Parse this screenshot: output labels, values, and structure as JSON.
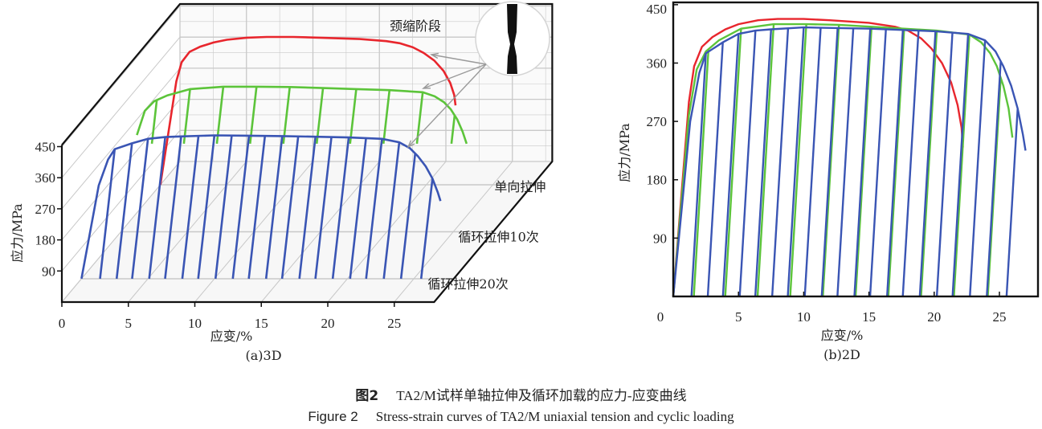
{
  "chart_data": [
    {
      "type": "line",
      "title": "(a)3D",
      "xlabel": "应变/%",
      "ylabel": "应力/MPa",
      "xlim": [
        0,
        28
      ],
      "ylim": [
        0,
        450
      ],
      "xticks": [
        "0",
        "5",
        "10",
        "15",
        "20",
        "25"
      ],
      "yticks": [
        "90",
        "180",
        "270",
        "360",
        "450"
      ],
      "grid": true,
      "annotation": "颈缩阶段",
      "series": [
        {
          "name": "单向拉伸",
          "color": "#e8262d",
          "envelope": [
            [
              0,
              0
            ],
            [
              1.2,
              300
            ],
            [
              1.6,
              355
            ],
            [
              2.2,
              385
            ],
            [
              3,
              400
            ],
            [
              4,
              412
            ],
            [
              5,
              420
            ],
            [
              6.5,
              426
            ],
            [
              8,
              428
            ],
            [
              10,
              428
            ],
            [
              12,
              426
            ],
            [
              15,
              422
            ],
            [
              17,
              416
            ],
            [
              18,
              410
            ],
            [
              19,
              398
            ],
            [
              19.8,
              382
            ],
            [
              20.6,
              360
            ],
            [
              21.3,
              330
            ],
            [
              21.8,
              295
            ],
            [
              22.1,
              260
            ],
            [
              22.2,
              230
            ]
          ],
          "cycles": []
        },
        {
          "name": "循环拉伸10次",
          "color": "#5cc43a",
          "envelope": [
            [
              0,
              0
            ],
            [
              1.2,
              280
            ],
            [
              1.8,
              350
            ],
            [
              2.5,
              378
            ],
            [
              3.5,
              395
            ],
            [
              5.2,
              413
            ],
            [
              7.7,
              420
            ],
            [
              10.2,
              420
            ],
            [
              12.7,
              419
            ],
            [
              15.2,
              416
            ],
            [
              17.7,
              413
            ],
            [
              20.2,
              410
            ],
            [
              22.7,
              404
            ],
            [
              23.6,
              392
            ],
            [
              24.3,
              375
            ],
            [
              24.8,
              355
            ],
            [
              25.3,
              325
            ],
            [
              25.7,
              290
            ],
            [
              26,
              245
            ]
          ],
          "cycles": [
            2.7,
            5.2,
            7.7,
            10.2,
            12.7,
            15.2,
            17.7,
            20.2,
            22.7,
            25.1
          ]
        },
        {
          "name": "循环拉伸20次",
          "color": "#3a55b4",
          "envelope": [
            [
              0,
              0
            ],
            [
              1.3,
              270
            ],
            [
              2,
              345
            ],
            [
              2.5,
              375
            ],
            [
              3.8,
              392
            ],
            [
              5,
              405
            ],
            [
              6.3,
              410
            ],
            [
              7.5,
              412
            ],
            [
              10,
              415
            ],
            [
              12.6,
              414
            ],
            [
              15.1,
              413
            ],
            [
              17.6,
              411
            ],
            [
              20.1,
              409
            ],
            [
              22.6,
              405
            ],
            [
              23.9,
              395
            ],
            [
              24.7,
              378
            ],
            [
              25.3,
              355
            ],
            [
              25.9,
              325
            ],
            [
              26.4,
              290
            ],
            [
              26.8,
              250
            ],
            [
              27,
              225
            ]
          ],
          "cycles": [
            2.5,
            3.8,
            5.0,
            6.3,
            7.5,
            8.8,
            10.0,
            11.3,
            12.6,
            13.8,
            15.1,
            16.3,
            17.6,
            18.8,
            20.1,
            21.4,
            22.6,
            23.9,
            25.1,
            26.4
          ]
        }
      ]
    },
    {
      "type": "line",
      "title": "(b)2D",
      "xlabel": "应变/%",
      "ylabel": "应力/MPa",
      "xlim": [
        0,
        28
      ],
      "ylim": [
        0,
        450
      ],
      "xticks": [
        "0",
        "5",
        "10",
        "15",
        "20",
        "25"
      ],
      "yticks": [
        "90",
        "180",
        "270",
        "360",
        "450"
      ],
      "grid": false,
      "series_ref": "same curves as (a)"
    }
  ],
  "caption": {
    "zh_label": "图2",
    "zh_text": "TA2/M试样单轴拉伸及循环加载的应力-应变曲线",
    "en_label": "Figure 2",
    "en_text": "Stress-strain curves of TA2/M uniaxial tension and cyclic loading"
  }
}
